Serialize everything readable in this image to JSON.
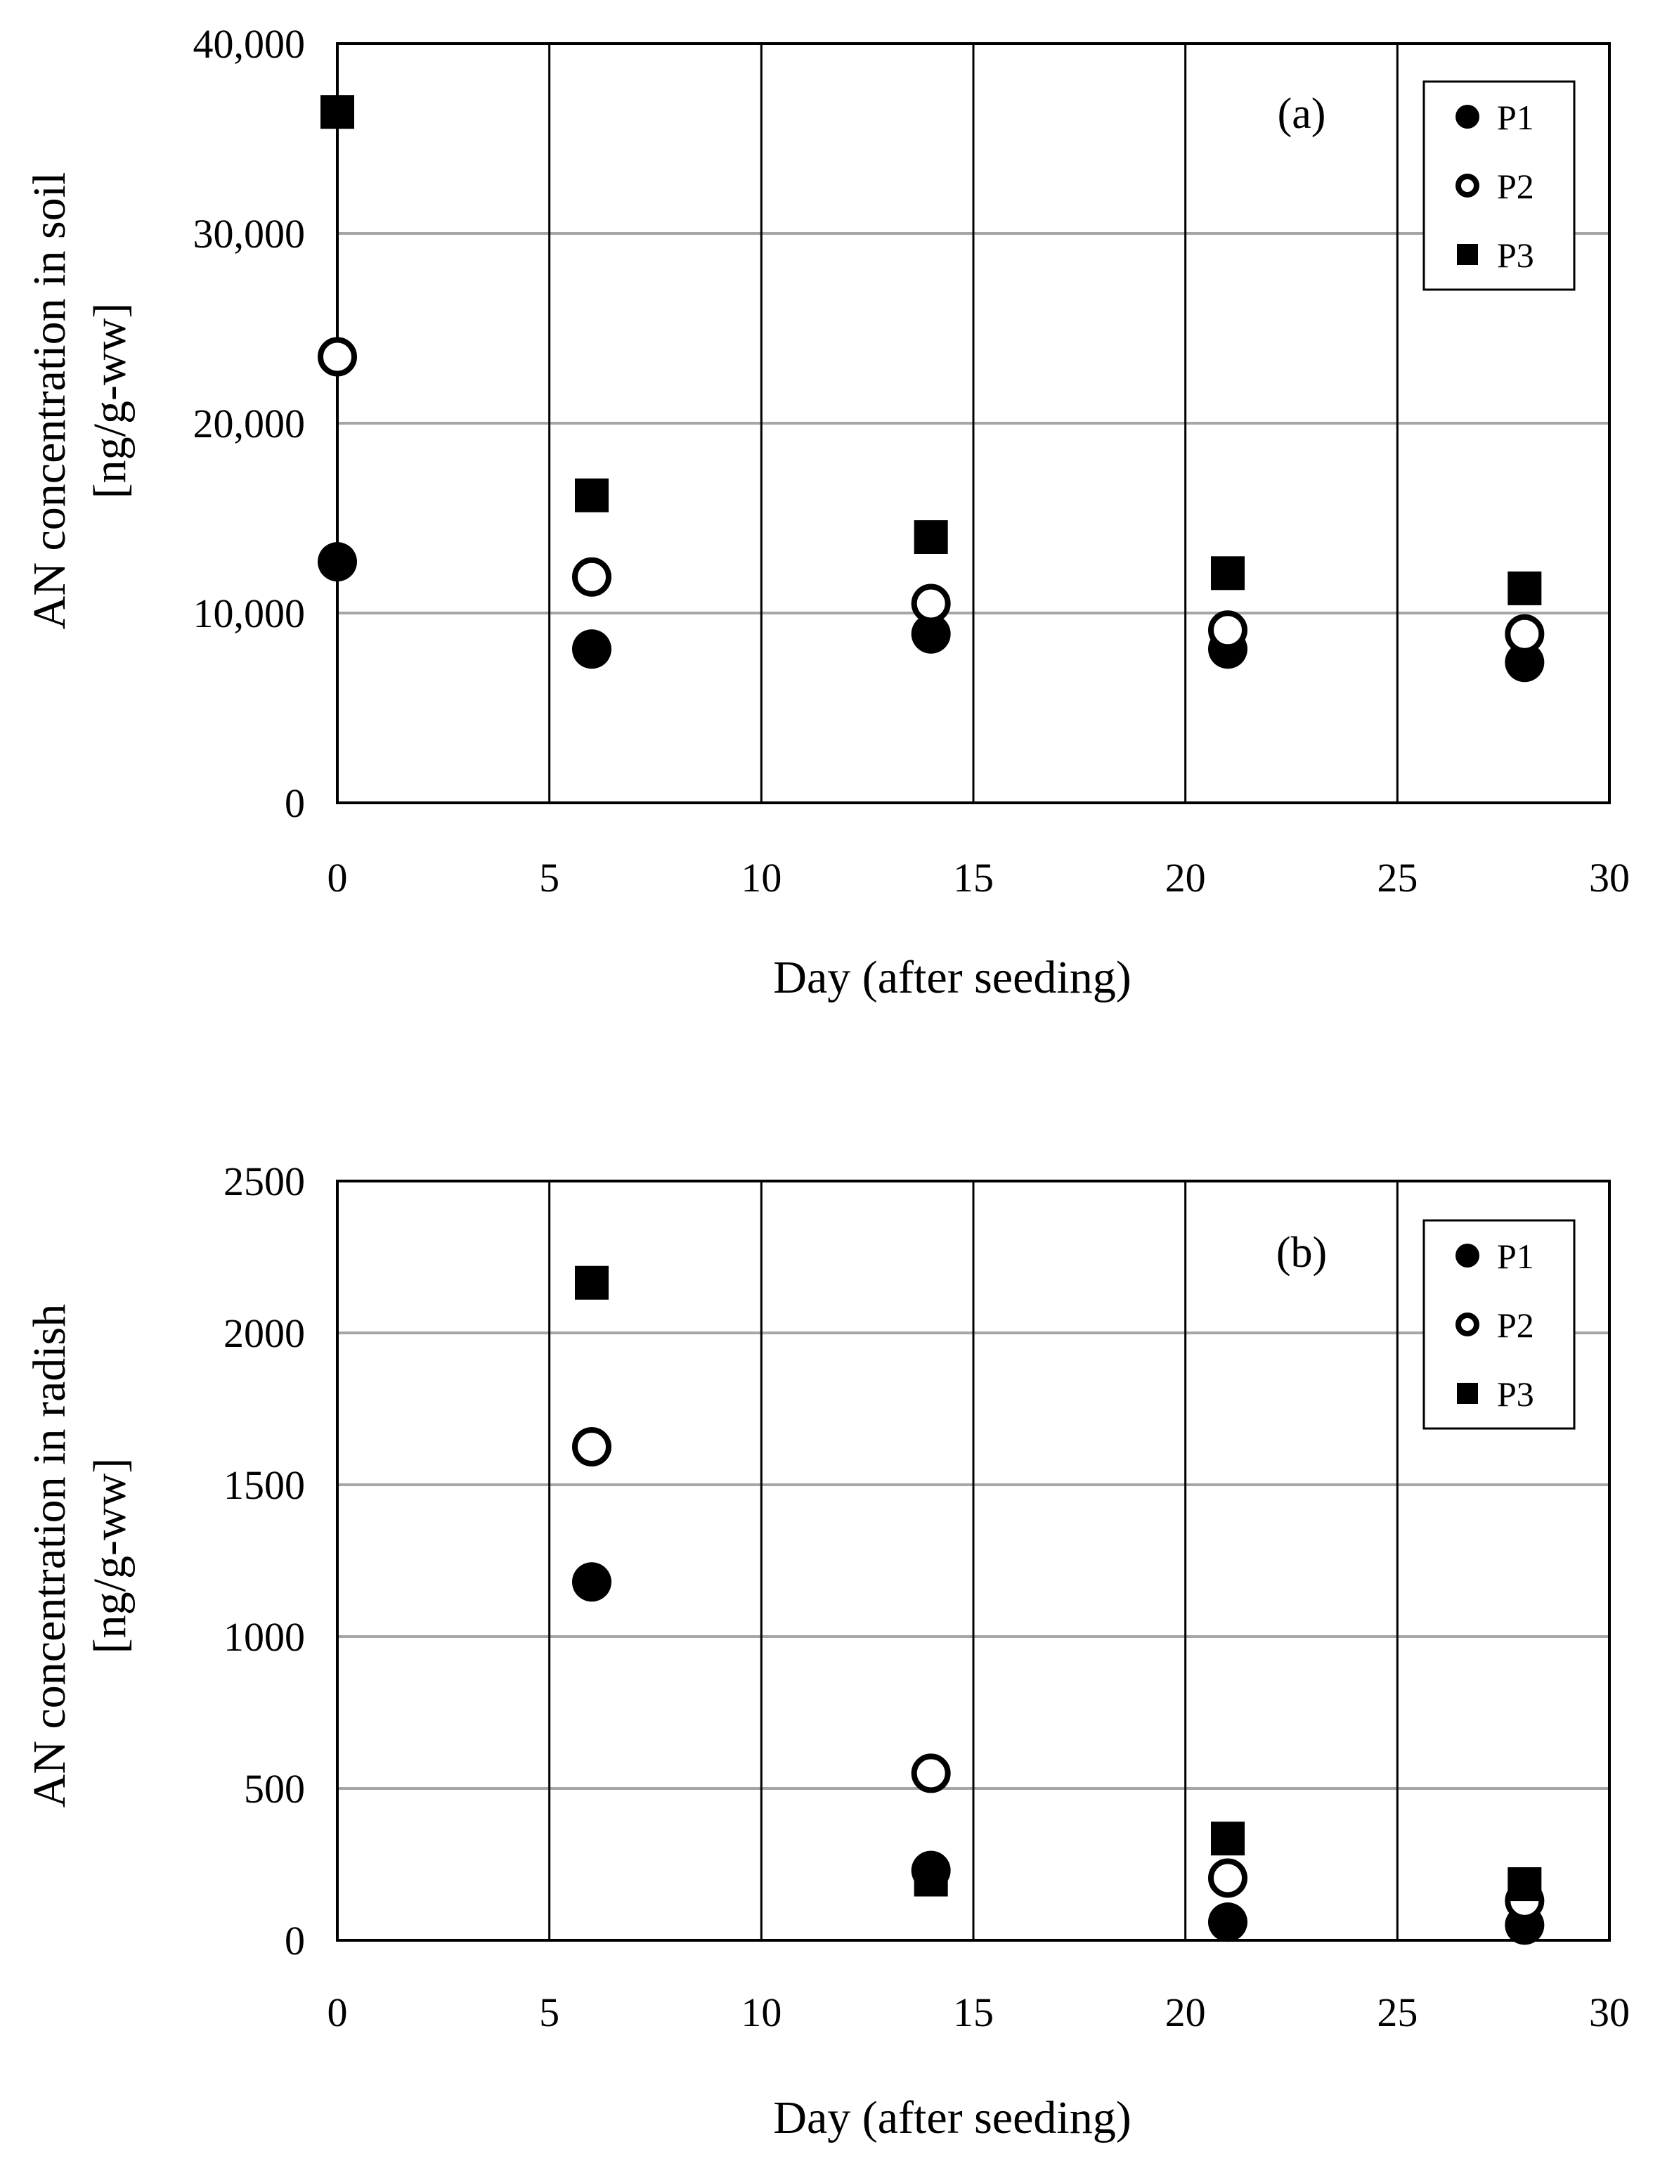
{
  "chart_data": [
    {
      "type": "scatter",
      "panel_label": "(a)",
      "xlabel": "Day (after seeding)",
      "ylabel": [
        "AN concentration in soil",
        "[ng/g-ww]"
      ],
      "xlim": [
        0,
        30
      ],
      "ylim": [
        0,
        40000
      ],
      "x_ticks": [
        "0",
        "5",
        "10",
        "15",
        "20",
        "25",
        "30"
      ],
      "y_ticks": [
        "0",
        "10,000",
        "20,000",
        "30,000",
        "40,000"
      ],
      "vertical_grid": true,
      "horizontal_grid": true,
      "legend_position": "top-right",
      "series": [
        {
          "name": "P1",
          "marker": "filled-circle",
          "x": [
            0,
            6,
            14,
            21,
            28
          ],
          "y": [
            12700,
            8100,
            8900,
            8100,
            7400
          ]
        },
        {
          "name": "P2",
          "marker": "open-circle",
          "x": [
            0,
            6,
            14,
            21,
            28
          ],
          "y": [
            23500,
            11900,
            10500,
            9100,
            8900
          ]
        },
        {
          "name": "P3",
          "marker": "filled-square",
          "x": [
            0,
            6,
            14,
            21,
            28
          ],
          "y": [
            36400,
            16200,
            14000,
            12100,
            11300
          ]
        }
      ]
    },
    {
      "type": "scatter",
      "panel_label": "(b)",
      "xlabel": "Day (after seeding)",
      "ylabel": [
        "AN concentration in radish",
        "[ng/g-ww]"
      ],
      "xlim": [
        0,
        30
      ],
      "ylim": [
        0,
        2500
      ],
      "x_ticks": [
        "0",
        "5",
        "10",
        "15",
        "20",
        "25",
        "30"
      ],
      "y_ticks": [
        "0",
        "500",
        "1000",
        "1500",
        "2000",
        "2500"
      ],
      "vertical_grid": true,
      "horizontal_grid": true,
      "legend_position": "top-right",
      "series": [
        {
          "name": "P1",
          "marker": "filled-circle",
          "x": [
            6,
            14,
            21,
            28
          ],
          "y": [
            1180,
            230,
            60,
            50
          ]
        },
        {
          "name": "P2",
          "marker": "open-circle",
          "x": [
            6,
            14,
            21,
            28
          ],
          "y": [
            1625,
            550,
            205,
            130
          ]
        },
        {
          "name": "P3",
          "marker": "filled-square",
          "x": [
            6,
            14,
            21,
            28
          ],
          "y": [
            2165,
            200,
            335,
            185
          ]
        }
      ]
    }
  ]
}
